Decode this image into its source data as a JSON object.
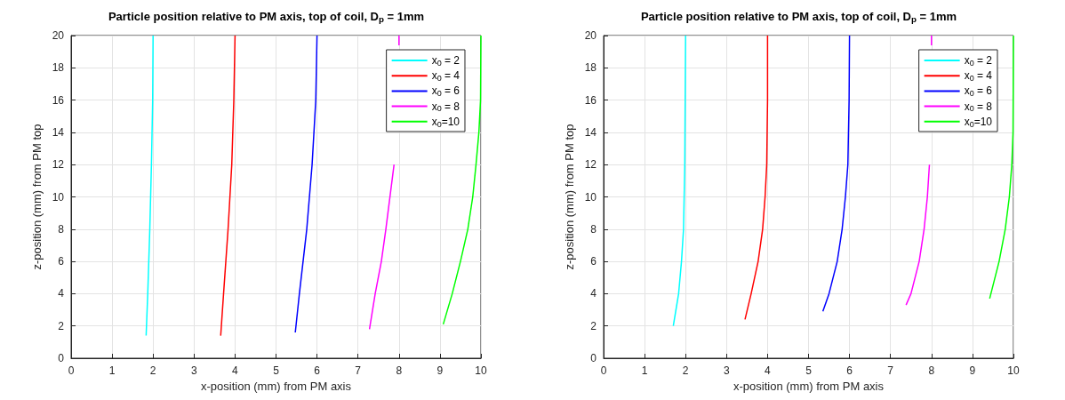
{
  "chart_data": [
    {
      "type": "line",
      "title": "Particle position relative to PM axis, top of coil, D$_{p}$ = 1mm",
      "xlabel": "x-position (mm) from PM axis",
      "ylabel": "z-position (mm) from PM top",
      "xlim": [
        0,
        10
      ],
      "xticks": [
        0,
        1,
        2,
        3,
        4,
        5,
        6,
        7,
        8,
        9,
        10
      ],
      "ylim": [
        0,
        20
      ],
      "yticks": [
        0,
        2,
        4,
        6,
        8,
        10,
        12,
        14,
        16,
        18,
        20
      ],
      "grid": true,
      "legend": "top right",
      "series": [
        {
          "name": "x$_{0}$ = 2",
          "color": "#00ffff",
          "x": [
            1.83,
            1.87,
            1.92,
            1.96,
            1.99,
            2.0
          ],
          "values": [
            1.4,
            4,
            8,
            12,
            16,
            20
          ]
        },
        {
          "name": "x$_{0}$ = 4",
          "color": "#ff0000",
          "x": [
            3.65,
            3.72,
            3.83,
            3.92,
            3.97,
            4.0
          ],
          "values": [
            1.4,
            4,
            8,
            12,
            16,
            20
          ]
        },
        {
          "name": "x$_{0}$ = 6",
          "color": "#0000ff",
          "x": [
            5.47,
            5.57,
            5.75,
            5.88,
            5.97,
            6.0
          ],
          "values": [
            1.6,
            4,
            8,
            12,
            16,
            20
          ]
        },
        {
          "name": "x$_{0}$ = 8",
          "color": "#ff00ff",
          "x": [
            7.28,
            7.42,
            7.57,
            7.68,
            7.88,
            null,
            8.0,
            8.0
          ],
          "values": [
            1.8,
            4,
            6,
            8,
            12,
            null,
            19.4,
            20
          ]
        },
        {
          "name": "x$_{0}$=10",
          "color": "#00ff00",
          "x": [
            9.08,
            9.3,
            9.5,
            9.68,
            9.8,
            9.88,
            9.95,
            9.99,
            10.0
          ],
          "values": [
            2.1,
            4,
            6,
            8,
            10,
            12,
            14,
            16,
            20
          ]
        }
      ]
    },
    {
      "type": "line",
      "title": "Particle position relative to PM axis, top of coil, D$_{p}$ = 1mm",
      "xlabel": "x-position (mm) from PM axis",
      "ylabel": "z-position (mm) from PM top",
      "xlim": [
        0,
        10
      ],
      "xticks": [
        0,
        1,
        2,
        3,
        4,
        5,
        6,
        7,
        8,
        9,
        10
      ],
      "ylim": [
        0,
        20
      ],
      "yticks": [
        0,
        2,
        4,
        6,
        8,
        10,
        12,
        14,
        16,
        18,
        20
      ],
      "grid": true,
      "legend": "top right",
      "series": [
        {
          "name": "x$_{0}$ = 2",
          "color": "#00ffff",
          "x": [
            1.7,
            1.83,
            1.9,
            1.95,
            1.98,
            2.0
          ],
          "values": [
            2,
            4,
            6,
            8,
            12,
            20
          ]
        },
        {
          "name": "x$_{0}$ = 4",
          "color": "#ff0000",
          "x": [
            3.45,
            3.6,
            3.77,
            3.88,
            3.94,
            3.98,
            4.0,
            4.0
          ],
          "values": [
            2.4,
            4,
            6,
            8,
            10,
            12,
            16,
            20
          ]
        },
        {
          "name": "x$_{0}$ = 6",
          "color": "#0000ff",
          "x": [
            5.35,
            5.5,
            5.7,
            5.82,
            5.9,
            5.96,
            5.99,
            6.0
          ],
          "values": [
            2.9,
            4,
            6,
            8,
            10,
            12,
            16,
            20
          ]
        },
        {
          "name": "x$_{0}$ = 8",
          "color": "#ff00ff",
          "x": [
            7.38,
            7.5,
            7.7,
            7.82,
            7.9,
            7.95,
            null,
            8.0,
            8.0
          ],
          "values": [
            3.3,
            4,
            6,
            8,
            10,
            12,
            null,
            19.4,
            20
          ]
        },
        {
          "name": "x$_{0}$=10",
          "color": "#00ff00",
          "x": [
            9.42,
            9.65,
            9.8,
            9.9,
            9.96,
            9.99,
            10.0
          ],
          "values": [
            3.7,
            6,
            8,
            10,
            12,
            14,
            20
          ]
        }
      ]
    }
  ]
}
